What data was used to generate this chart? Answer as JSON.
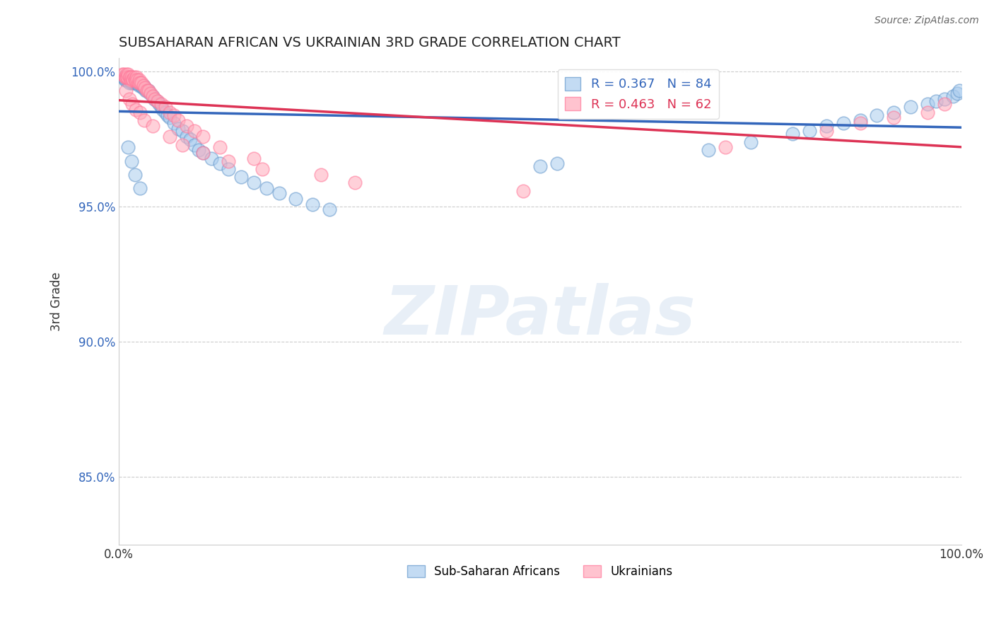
{
  "title": "SUBSAHARAN AFRICAN VS UKRAINIAN 3RD GRADE CORRELATION CHART",
  "source": "Source: ZipAtlas.com",
  "ylabel": "3rd Grade",
  "xlim": [
    0.0,
    1.0
  ],
  "ylim": [
    0.825,
    1.005
  ],
  "yticks": [
    0.85,
    0.9,
    0.95,
    1.0
  ],
  "ytick_labels": [
    "85.0%",
    "90.0%",
    "95.0%",
    "100.0%"
  ],
  "xticks": [
    0.0,
    1.0
  ],
  "xtick_labels": [
    "0.0%",
    "100.0%"
  ],
  "blue_fill": "#AACCEE",
  "pink_fill": "#FFAABB",
  "blue_edge": "#6699CC",
  "pink_edge": "#FF7799",
  "blue_line": "#3366BB",
  "pink_line": "#DD3355",
  "legend_blue": "R = 0.367   N = 84",
  "legend_pink": "R = 0.463   N = 62",
  "legend_label_blue": "Sub-Saharan Africans",
  "legend_label_pink": "Ukrainians",
  "watermark": "ZIPatlas",
  "blue_scatter_x": [
    0.005,
    0.007,
    0.008,
    0.009,
    0.01,
    0.01,
    0.011,
    0.012,
    0.012,
    0.013,
    0.014,
    0.015,
    0.015,
    0.016,
    0.017,
    0.018,
    0.018,
    0.019,
    0.02,
    0.02,
    0.021,
    0.022,
    0.023,
    0.024,
    0.025,
    0.026,
    0.027,
    0.028,
    0.029,
    0.03,
    0.031,
    0.032,
    0.033,
    0.035,
    0.037,
    0.04,
    0.042,
    0.045,
    0.048,
    0.05,
    0.052,
    0.055,
    0.058,
    0.06,
    0.065,
    0.07,
    0.075,
    0.08,
    0.085,
    0.09,
    0.095,
    0.1,
    0.11,
    0.12,
    0.13,
    0.145,
    0.16,
    0.175,
    0.19,
    0.21,
    0.23,
    0.25,
    0.5,
    0.52,
    0.7,
    0.75,
    0.8,
    0.82,
    0.84,
    0.86,
    0.88,
    0.9,
    0.92,
    0.94,
    0.96,
    0.97,
    0.98,
    0.99,
    0.995,
    0.998,
    0.011,
    0.015,
    0.019,
    0.025
  ],
  "blue_scatter_y": [
    0.998,
    0.997,
    0.997,
    0.998,
    0.998,
    0.997,
    0.998,
    0.997,
    0.996,
    0.997,
    0.997,
    0.998,
    0.996,
    0.997,
    0.996,
    0.996,
    0.997,
    0.996,
    0.997,
    0.996,
    0.996,
    0.997,
    0.996,
    0.995,
    0.996,
    0.995,
    0.995,
    0.994,
    0.995,
    0.994,
    0.994,
    0.993,
    0.993,
    0.993,
    0.992,
    0.991,
    0.99,
    0.989,
    0.988,
    0.987,
    0.986,
    0.985,
    0.984,
    0.983,
    0.981,
    0.979,
    0.978,
    0.976,
    0.975,
    0.973,
    0.971,
    0.97,
    0.968,
    0.966,
    0.964,
    0.961,
    0.959,
    0.957,
    0.955,
    0.953,
    0.951,
    0.949,
    0.965,
    0.966,
    0.971,
    0.974,
    0.977,
    0.978,
    0.98,
    0.981,
    0.982,
    0.984,
    0.985,
    0.987,
    0.988,
    0.989,
    0.99,
    0.991,
    0.992,
    0.993,
    0.972,
    0.967,
    0.962,
    0.957
  ],
  "pink_scatter_x": [
    0.004,
    0.006,
    0.007,
    0.008,
    0.009,
    0.01,
    0.01,
    0.011,
    0.012,
    0.013,
    0.014,
    0.015,
    0.016,
    0.017,
    0.018,
    0.019,
    0.02,
    0.021,
    0.022,
    0.023,
    0.024,
    0.025,
    0.027,
    0.029,
    0.031,
    0.033,
    0.035,
    0.038,
    0.04,
    0.043,
    0.046,
    0.05,
    0.055,
    0.06,
    0.065,
    0.07,
    0.08,
    0.09,
    0.1,
    0.12,
    0.16,
    0.24,
    0.28,
    0.48,
    0.72,
    0.84,
    0.88,
    0.92,
    0.96,
    0.98,
    0.008,
    0.012,
    0.016,
    0.02,
    0.025,
    0.03,
    0.04,
    0.06,
    0.075,
    0.1,
    0.13,
    0.17
  ],
  "pink_scatter_y": [
    0.999,
    0.999,
    0.998,
    0.998,
    0.999,
    0.998,
    0.998,
    0.999,
    0.998,
    0.998,
    0.997,
    0.998,
    0.997,
    0.997,
    0.998,
    0.997,
    0.997,
    0.998,
    0.997,
    0.996,
    0.997,
    0.996,
    0.996,
    0.995,
    0.994,
    0.993,
    0.993,
    0.992,
    0.991,
    0.99,
    0.989,
    0.988,
    0.987,
    0.985,
    0.984,
    0.982,
    0.98,
    0.978,
    0.976,
    0.972,
    0.968,
    0.962,
    0.959,
    0.956,
    0.972,
    0.978,
    0.981,
    0.983,
    0.985,
    0.988,
    0.993,
    0.99,
    0.988,
    0.986,
    0.985,
    0.982,
    0.98,
    0.976,
    0.973,
    0.97,
    0.967,
    0.964
  ]
}
